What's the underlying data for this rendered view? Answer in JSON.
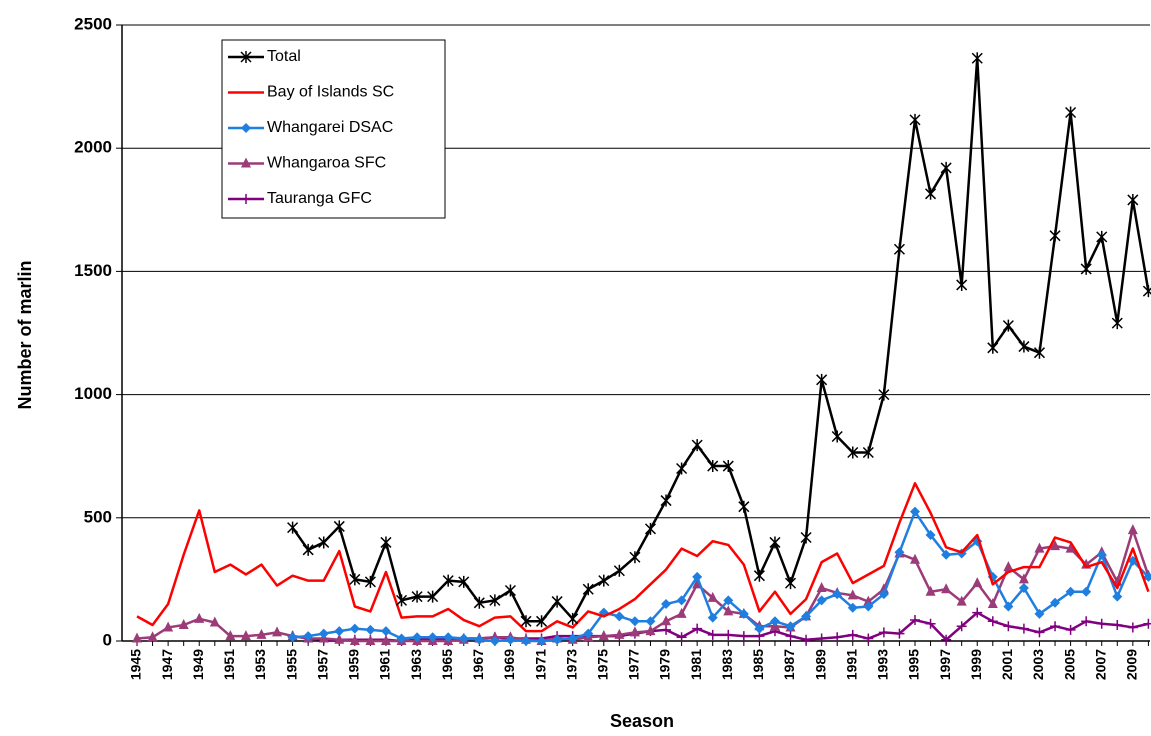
{
  "chart_data": {
    "type": "line",
    "x_label": "Season",
    "y_label": "Number of marlin",
    "categories": [
      "1945",
      null,
      "1947",
      null,
      "1949",
      null,
      "1951",
      null,
      "1953",
      null,
      "1955",
      null,
      "1957",
      null,
      "1959",
      null,
      "1961",
      null,
      "1963",
      null,
      "1965",
      null,
      "1967",
      null,
      "1969",
      null,
      "1971",
      null,
      "1973",
      null,
      "1975",
      null,
      "1977",
      null,
      "1979",
      null,
      "1981",
      null,
      "1983",
      null,
      "1985",
      null,
      "1987",
      null,
      "1989",
      null,
      "1991",
      null,
      "1993",
      null,
      "1995",
      null,
      "1997",
      null,
      "1999",
      null,
      "2001",
      null,
      "2003",
      null,
      "2005",
      null,
      "2007",
      null,
      "2009",
      null
    ],
    "series": [
      {
        "name": "Total",
        "color": "#000000",
        "marker": "star",
        "values": [
          null,
          null,
          null,
          null,
          null,
          null,
          null,
          null,
          null,
          null,
          460,
          370,
          400,
          465,
          250,
          240,
          400,
          165,
          180,
          180,
          245,
          240,
          155,
          165,
          205,
          80,
          80,
          160,
          90,
          210,
          245,
          285,
          340,
          455,
          570,
          700,
          795,
          710,
          710,
          545,
          265,
          400,
          235,
          420,
          1060,
          830,
          765,
          765,
          1000,
          1590,
          2115,
          1815,
          1920,
          1445,
          2365,
          1190,
          1280,
          1195,
          1170,
          1645,
          2145,
          1510,
          1640,
          1290,
          1790,
          1420
        ]
      },
      {
        "name": "Bay of Islands SC",
        "color": "#ff0000",
        "marker": "none",
        "values": [
          100,
          65,
          150,
          350,
          530,
          280,
          310,
          270,
          310,
          225,
          265,
          245,
          245,
          365,
          140,
          120,
          280,
          95,
          100,
          100,
          130,
          85,
          60,
          95,
          100,
          40,
          40,
          80,
          55,
          120,
          100,
          130,
          170,
          230,
          290,
          375,
          345,
          405,
          390,
          310,
          120,
          200,
          110,
          170,
          320,
          355,
          235,
          270,
          305,
          480,
          640,
          520,
          380,
          360,
          430,
          230,
          280,
          300,
          300,
          420,
          400,
          300,
          320,
          215,
          375,
          200
        ]
      },
      {
        "name": "Whangarei DSAC",
        "color": "#1f7fe0",
        "marker": "diamond",
        "values": [
          null,
          null,
          null,
          null,
          null,
          null,
          null,
          null,
          null,
          null,
          15,
          20,
          30,
          40,
          50,
          45,
          40,
          10,
          15,
          15,
          15,
          10,
          5,
          0,
          5,
          0,
          0,
          5,
          10,
          30,
          115,
          100,
          80,
          80,
          150,
          165,
          260,
          95,
          165,
          110,
          50,
          80,
          60,
          100,
          165,
          190,
          135,
          140,
          190,
          360,
          525,
          430,
          350,
          355,
          405,
          260,
          140,
          215,
          110,
          155,
          200,
          200,
          350,
          180,
          325,
          260
        ]
      },
      {
        "name": "Whangaroa SFC",
        "color": "#9b3b78",
        "marker": "triangle",
        "values": [
          10,
          15,
          55,
          65,
          90,
          75,
          20,
          20,
          25,
          35,
          20,
          10,
          10,
          5,
          0,
          0,
          0,
          0,
          0,
          0,
          0,
          5,
          10,
          15,
          15,
          5,
          0,
          10,
          5,
          15,
          20,
          25,
          35,
          40,
          80,
          110,
          230,
          175,
          120,
          110,
          60,
          60,
          55,
          100,
          215,
          195,
          185,
          160,
          210,
          355,
          330,
          200,
          210,
          160,
          235,
          150,
          300,
          250,
          375,
          385,
          375,
          310,
          360,
          240,
          450,
          265
        ]
      },
      {
        "name": "Tauranga GFC",
        "color": "#800080",
        "marker": "plus",
        "values": [
          null,
          null,
          null,
          null,
          null,
          null,
          null,
          null,
          null,
          null,
          20,
          10,
          5,
          5,
          5,
          5,
          5,
          0,
          5,
          5,
          10,
          10,
          10,
          15,
          10,
          10,
          10,
          20,
          20,
          20,
          20,
          20,
          30,
          40,
          45,
          15,
          50,
          25,
          25,
          20,
          20,
          40,
          20,
          5,
          10,
          15,
          25,
          10,
          35,
          30,
          85,
          70,
          5,
          60,
          115,
          80,
          60,
          50,
          35,
          60,
          45,
          80,
          70,
          65,
          55,
          70
        ]
      }
    ],
    "ylim": [
      0,
      2500
    ],
    "yticks": [
      0,
      500,
      1000,
      1500,
      2000,
      2500
    ],
    "grid": true,
    "legend": "upper-left"
  }
}
